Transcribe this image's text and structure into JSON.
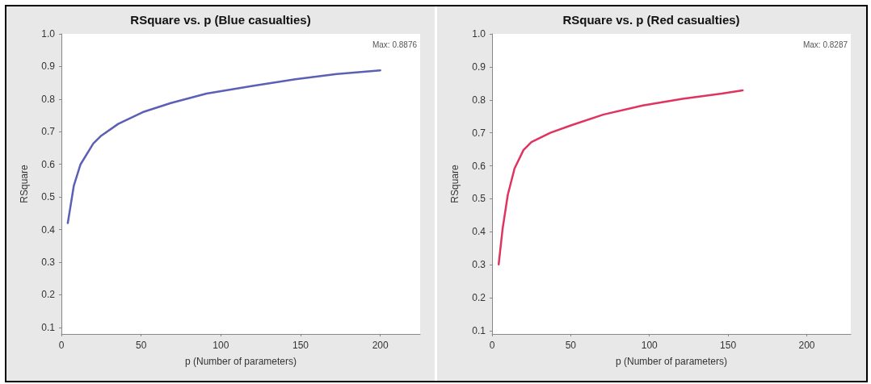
{
  "chart_data": [
    {
      "type": "line",
      "title": "RSquare vs. p (Blue casualties)",
      "xlabel": "p (Number of parameters)",
      "ylabel": "RSquare",
      "annotations": [
        "Max: 0.8876"
      ],
      "x": [
        4,
        7.8,
        12,
        20,
        25,
        35.6,
        51,
        68.6,
        91,
        120.7,
        146.7,
        172.7,
        200
      ],
      "series": [
        {
          "color": "#5b5fb5",
          "values": [
            0.42,
            0.535,
            0.6,
            0.664,
            0.688,
            0.724,
            0.76,
            0.788,
            0.817,
            0.841,
            0.861,
            0.877,
            0.888
          ]
        }
      ],
      "xlim": [
        0,
        225
      ],
      "xticks": [
        0,
        50,
        100,
        150,
        200
      ],
      "ylim": [
        0.08,
        1.0
      ],
      "yticks": [
        0.1,
        0.2,
        0.3,
        0.4,
        0.5,
        0.6,
        0.7,
        0.8,
        0.9,
        {
          "value": 1.0,
          "label": "1.0"
        }
      ],
      "grid": false,
      "marker": "none"
    },
    {
      "type": "line",
      "title": "RSquare vs. p (Red casualties)",
      "xlabel": "p (Number of parameters)",
      "ylabel": "RSquare",
      "annotations": [
        "Max: 0.8287"
      ],
      "x": [
        4.2,
        6.7,
        10,
        14.3,
        20,
        25,
        37,
        50.4,
        70.6,
        95.8,
        121,
        146,
        159.3
      ],
      "series": [
        {
          "color": "#e0335f",
          "values": [
            0.301,
            0.409,
            0.512,
            0.592,
            0.648,
            0.672,
            0.7,
            0.723,
            0.755,
            0.783,
            0.803,
            0.819,
            0.829
          ]
        }
      ],
      "xlim": [
        0,
        228
      ],
      "xticks": [
        0,
        50,
        100,
        150,
        200
      ],
      "ylim": [
        0.09,
        1.0
      ],
      "yticks": [
        0.1,
        0.2,
        0.3,
        0.4,
        0.5,
        0.6,
        0.7,
        0.8,
        0.9,
        {
          "value": 1.0,
          "label": "1.0"
        }
      ],
      "grid": false,
      "marker": "none"
    }
  ]
}
